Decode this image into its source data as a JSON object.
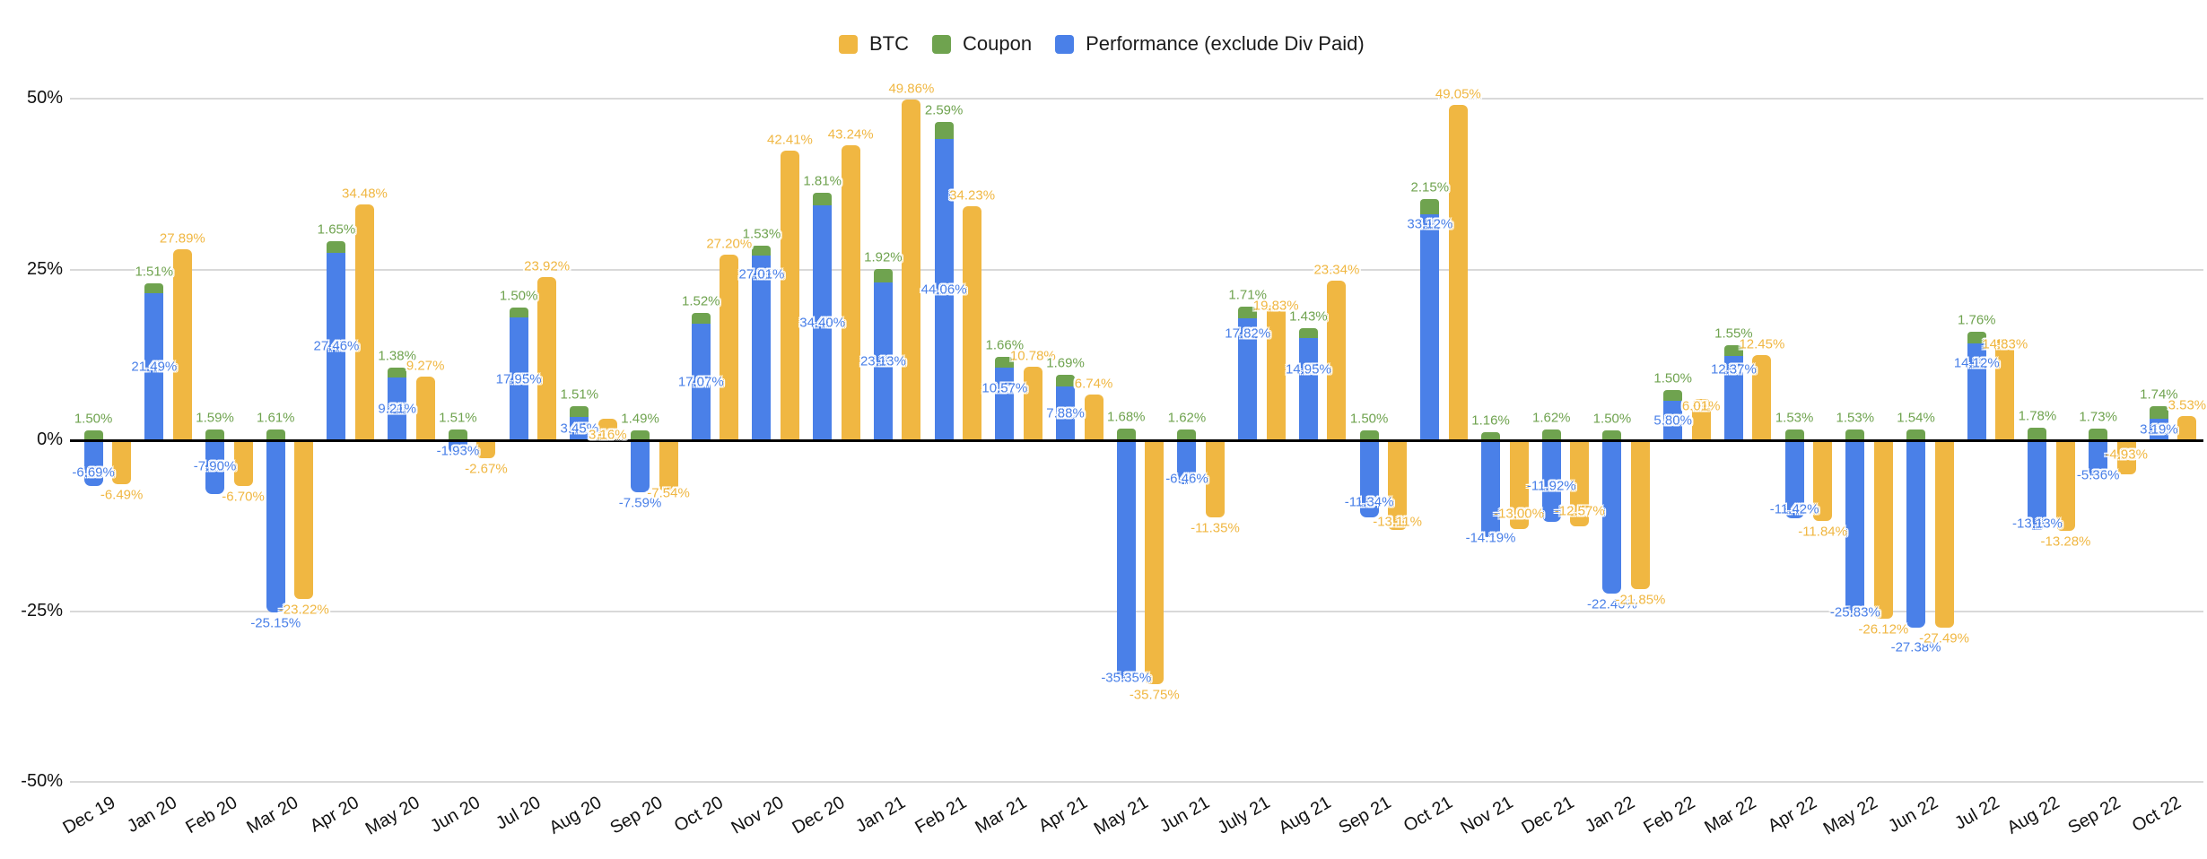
{
  "chart_data": {
    "type": "bar",
    "title": "",
    "value_format": "0.00%",
    "legend_position": "top",
    "categories": [
      "Dec 19",
      "Jan 20",
      "Feb 20",
      "Mar 20",
      "Apr 20",
      "May 20",
      "Jun 20",
      "Jul 20",
      "Aug 20",
      "Sep 20",
      "Oct 20",
      "Nov 20",
      "Dec 20",
      "Jan 21",
      "Feb 21",
      "Mar 21",
      "Apr 21",
      "May 21",
      "Jun 21",
      "July 21",
      "Aug 21",
      "Sep 21",
      "Oct 21",
      "Nov 21",
      "Dec 21",
      "Jan 22",
      "Feb 22",
      "Mar 22",
      "Apr 22",
      "May 22",
      "Jun 22",
      "Jul 22",
      "Aug 22",
      "Sep 22",
      "Oct 22"
    ],
    "series": [
      {
        "name": "BTC",
        "color": "#F0B742",
        "type": "column",
        "values": [
          -6.49,
          27.89,
          -6.7,
          -23.22,
          34.48,
          9.27,
          -2.67,
          23.92,
          3.16,
          -7.54,
          27.2,
          42.41,
          43.24,
          49.86,
          34.23,
          10.78,
          6.74,
          -35.75,
          -11.35,
          19.83,
          23.34,
          -13.11,
          49.05,
          -13.0,
          -12.57,
          -21.85,
          6.01,
          12.45,
          -11.84,
          -26.12,
          -27.49,
          14.83,
          -13.28,
          -4.93,
          3.53
        ]
      },
      {
        "name": "Coupon",
        "color": "#6FA34F",
        "type": "column-stacked-on-performance",
        "values": [
          1.5,
          1.51,
          1.59,
          1.61,
          1.65,
          1.38,
          1.51,
          1.5,
          1.51,
          1.49,
          1.52,
          1.53,
          1.81,
          1.92,
          2.59,
          1.66,
          1.69,
          1.68,
          1.62,
          1.71,
          1.43,
          1.5,
          2.15,
          1.16,
          1.62,
          1.5,
          1.5,
          1.55,
          1.53,
          1.53,
          1.54,
          1.76,
          1.78,
          1.73,
          1.74
        ]
      },
      {
        "name": "Performance (exclude Div Paid)",
        "color": "#4A80E8",
        "type": "column-stacked-base",
        "values": [
          -6.69,
          21.49,
          -7.9,
          -25.15,
          27.46,
          9.21,
          -1.93,
          17.95,
          3.45,
          -7.59,
          17.07,
          27.01,
          34.4,
          23.13,
          44.06,
          10.57,
          7.88,
          -35.35,
          -6.46,
          17.82,
          14.95,
          -11.34,
          33.12,
          -14.19,
          -11.92,
          -22.4,
          5.8,
          12.37,
          -11.42,
          -25.83,
          -27.38,
          14.12,
          -13.13,
          -5.36,
          3.19
        ]
      }
    ],
    "y_axis": {
      "min": -50,
      "max": 50,
      "ticks": [
        "50%",
        "25%",
        "0%",
        "-25%",
        "-50%"
      ],
      "tick_values": [
        50,
        25,
        0,
        -25,
        -50
      ],
      "grid": true
    },
    "data_labels": {
      "visible": true,
      "halo_color": "#FFFFFF"
    },
    "layout_hints": {
      "stacking": "Coupon stacked on top of Performance in one column; BTC is the adjacent column",
      "label_offsets": {
        "0": {
          "perf": -27
        },
        "2": {
          "perf": -43
        },
        "6": {
          "perf": -15
        },
        "8": {
          "btc": 30
        },
        "9": {
          "btc": -10
        },
        "11": {
          "perf": -82
        },
        "15": {
          "perf": -18
        },
        "17": {
          "perf": -16
        },
        "18": {
          "perf": -18
        },
        "19": {
          "perf": -51,
          "btc": 13
        },
        "20": {
          "perf": -22
        },
        "21": {
          "perf": -29,
          "btc": -21
        },
        "22": {
          "perf": -115
        },
        "23": {
          "perf": -11,
          "btc": -29
        },
        "24": {
          "perf": -52,
          "btc": -29
        },
        "26": {
          "btc": 20
        },
        "27": {
          "perf": -32
        },
        "28": {
          "perf": -22
        },
        "29": {
          "perf": -17
        },
        "30": {
          "perf": 10
        },
        "31": {
          "perf": -32,
          "btc": 18
        },
        "32": {
          "perf": -19
        },
        "33": {
          "perf": -14,
          "btc": -34
        }
      }
    }
  }
}
